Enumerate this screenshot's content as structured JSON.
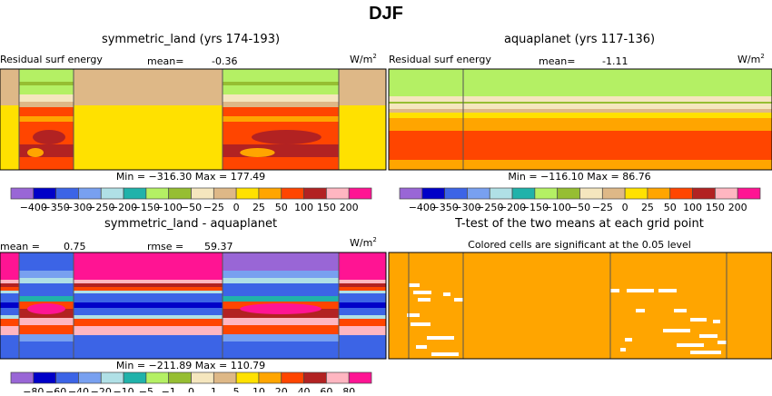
{
  "title": "DJF",
  "chart_data": [
    {
      "type": "heatmap",
      "title": "symmetric_land (yrs 174-193)",
      "left_label": "Residual surf energy",
      "mean_label": "mean=",
      "mean": "-0.36",
      "units": "W/m",
      "units_sup": "2",
      "min_max": "Min = −316.30 Max = 177.49",
      "colorbar_labels": [
        "−400",
        "−350",
        "−300",
        "−250",
        "−200",
        "−150",
        "−100",
        "−50",
        "−25",
        "0",
        "25",
        "50",
        "100",
        "150",
        "200"
      ]
    },
    {
      "type": "heatmap",
      "title": "aquaplanet (yrs 117-136)",
      "left_label": "Residual surf energy",
      "mean_label": "mean=",
      "mean": "-1.11",
      "units": "W/m",
      "units_sup": "2",
      "min_max": "Min = −116.10 Max = 86.76",
      "colorbar_labels": [
        "−400",
        "−350",
        "−300",
        "−250",
        "−200",
        "−150",
        "−100",
        "−50",
        "−25",
        "0",
        "25",
        "50",
        "100",
        "150",
        "200"
      ]
    },
    {
      "type": "heatmap",
      "title": "symmetric_land - aquaplanet",
      "mean_label": "mean =",
      "mean": "0.75",
      "rmse_label": "rmse =",
      "rmse": "59.37",
      "units": "W/m",
      "units_sup": "2",
      "min_max": "Min = −211.89 Max = 110.79",
      "colorbar_labels": [
        "−80",
        "−60",
        "−40",
        "−20",
        "−10",
        "−5",
        "−1",
        "0",
        "1",
        "5",
        "10",
        "20",
        "40",
        "60",
        "80"
      ]
    },
    {
      "type": "heatmap",
      "title": "T-test of the two means at each grid point",
      "subtitle": "Colored cells are significant at the 0.05 level"
    }
  ],
  "colors": {
    "colorbar": [
      "#9966d6",
      "#0000c8",
      "#3c64e6",
      "#78a0f0",
      "#b0e0e6",
      "#20b2aa",
      "#b4f064",
      "#96be32",
      "#f5e6be",
      "#deb887",
      "#ffe100",
      "#ffa500",
      "#ff4500",
      "#b22222",
      "#ffb6c1",
      "#ff1493"
    ],
    "significant": "#ffa500"
  }
}
